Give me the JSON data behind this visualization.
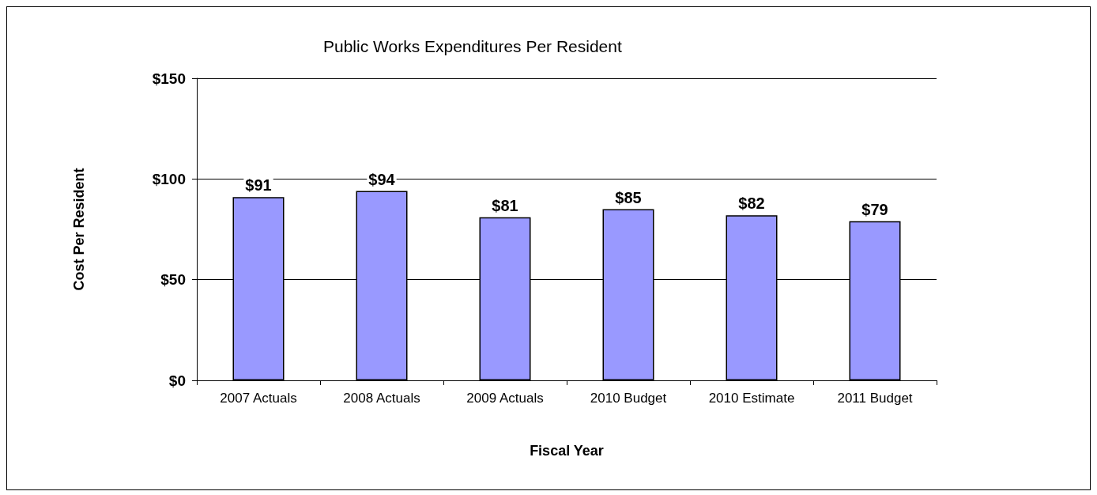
{
  "chart_data": {
    "type": "bar",
    "title": "Public Works Expenditures Per Resident",
    "xlabel": "Fiscal Year",
    "ylabel": "Cost Per Resident",
    "categories": [
      "2007 Actuals",
      "2008 Actuals",
      "2009 Actuals",
      "2010 Budget",
      "2010 Estimate",
      "2011 Budget"
    ],
    "values": [
      91,
      94,
      81,
      85,
      82,
      79
    ],
    "value_labels": [
      "$91",
      "$94",
      "$81",
      "$85",
      "$82",
      "$79"
    ],
    "color": "#9999ff",
    "ylim": [
      0,
      150
    ],
    "yticks": [
      {
        "value": 0,
        "label": "$0"
      },
      {
        "value": 50,
        "label": "$50"
      },
      {
        "value": 100,
        "label": "$100"
      },
      {
        "value": 150,
        "label": "$150"
      }
    ],
    "grid": "y"
  }
}
